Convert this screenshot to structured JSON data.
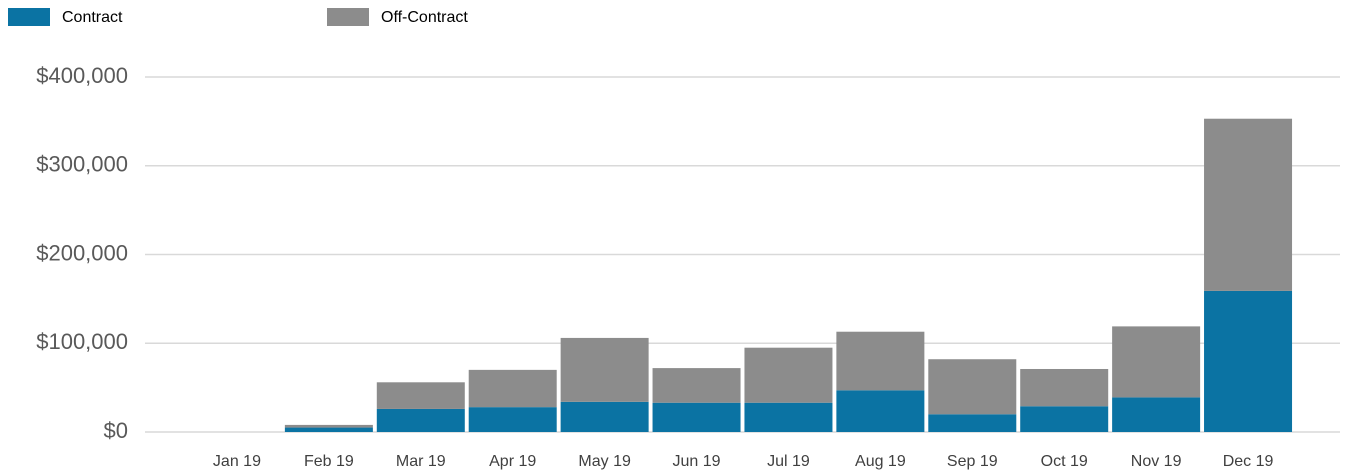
{
  "chart_data": {
    "type": "bar",
    "stacked": true,
    "categories": [
      "Jan 19",
      "Feb 19",
      "Mar 19",
      "Apr 19",
      "May 19",
      "Jun 19",
      "Jul 19",
      "Aug 19",
      "Sep 19",
      "Oct 19",
      "Nov 19",
      "Dec 19"
    ],
    "series": [
      {
        "name": "Contract",
        "color": "#0b73a3",
        "values": [
          0,
          5000,
          26000,
          28000,
          34000,
          33000,
          33000,
          47000,
          20000,
          29000,
          39000,
          159000
        ]
      },
      {
        "name": "Off-Contract",
        "color": "#8c8c8c",
        "values": [
          0,
          3000,
          30000,
          42000,
          72000,
          39000,
          62000,
          66000,
          62000,
          42000,
          80000,
          194000
        ]
      }
    ],
    "ylim": [
      0,
      400000
    ],
    "yticks": [
      {
        "value": 0,
        "label": "$0"
      },
      {
        "value": 100000,
        "label": "$100,000"
      },
      {
        "value": 200000,
        "label": "$200,000"
      },
      {
        "value": 300000,
        "label": "$300,000"
      },
      {
        "value": 400000,
        "label": "$400,000"
      }
    ],
    "grid": true,
    "legend": "top-left"
  }
}
